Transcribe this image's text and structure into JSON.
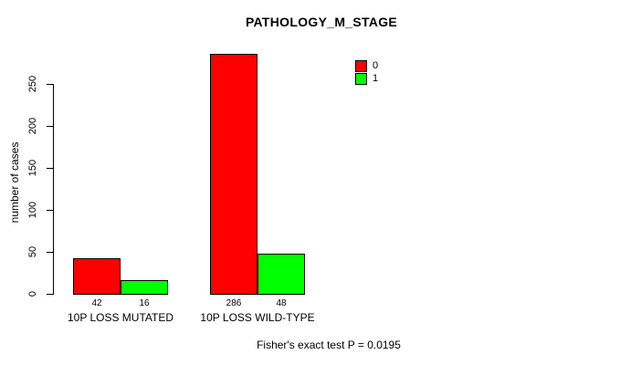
{
  "chart_data": {
    "type": "bar",
    "title": "PATHOLOGY_M_STAGE",
    "categories": [
      "10P LOSS MUTATED",
      "10P LOSS WILD-TYPE"
    ],
    "series": [
      {
        "name": "0",
        "color": "#ff0000",
        "values": [
          42,
          286
        ]
      },
      {
        "name": "1",
        "color": "#00ff00",
        "values": [
          16,
          48
        ]
      }
    ],
    "xlabel": "",
    "ylabel": "number of cases",
    "ylim": [
      0,
      250
    ],
    "yticks": [
      0,
      50,
      100,
      150,
      200,
      250
    ],
    "bar_value_labels": [
      [
        42,
        16
      ],
      [
        286,
        48
      ]
    ],
    "annotation": "Fisher's exact test P = 0.0195",
    "legend_position": "top-right",
    "legend_entries": [
      "0",
      "1"
    ],
    "grid": false,
    "bar_border_color": "#000000",
    "background_color": "#ffffff"
  }
}
